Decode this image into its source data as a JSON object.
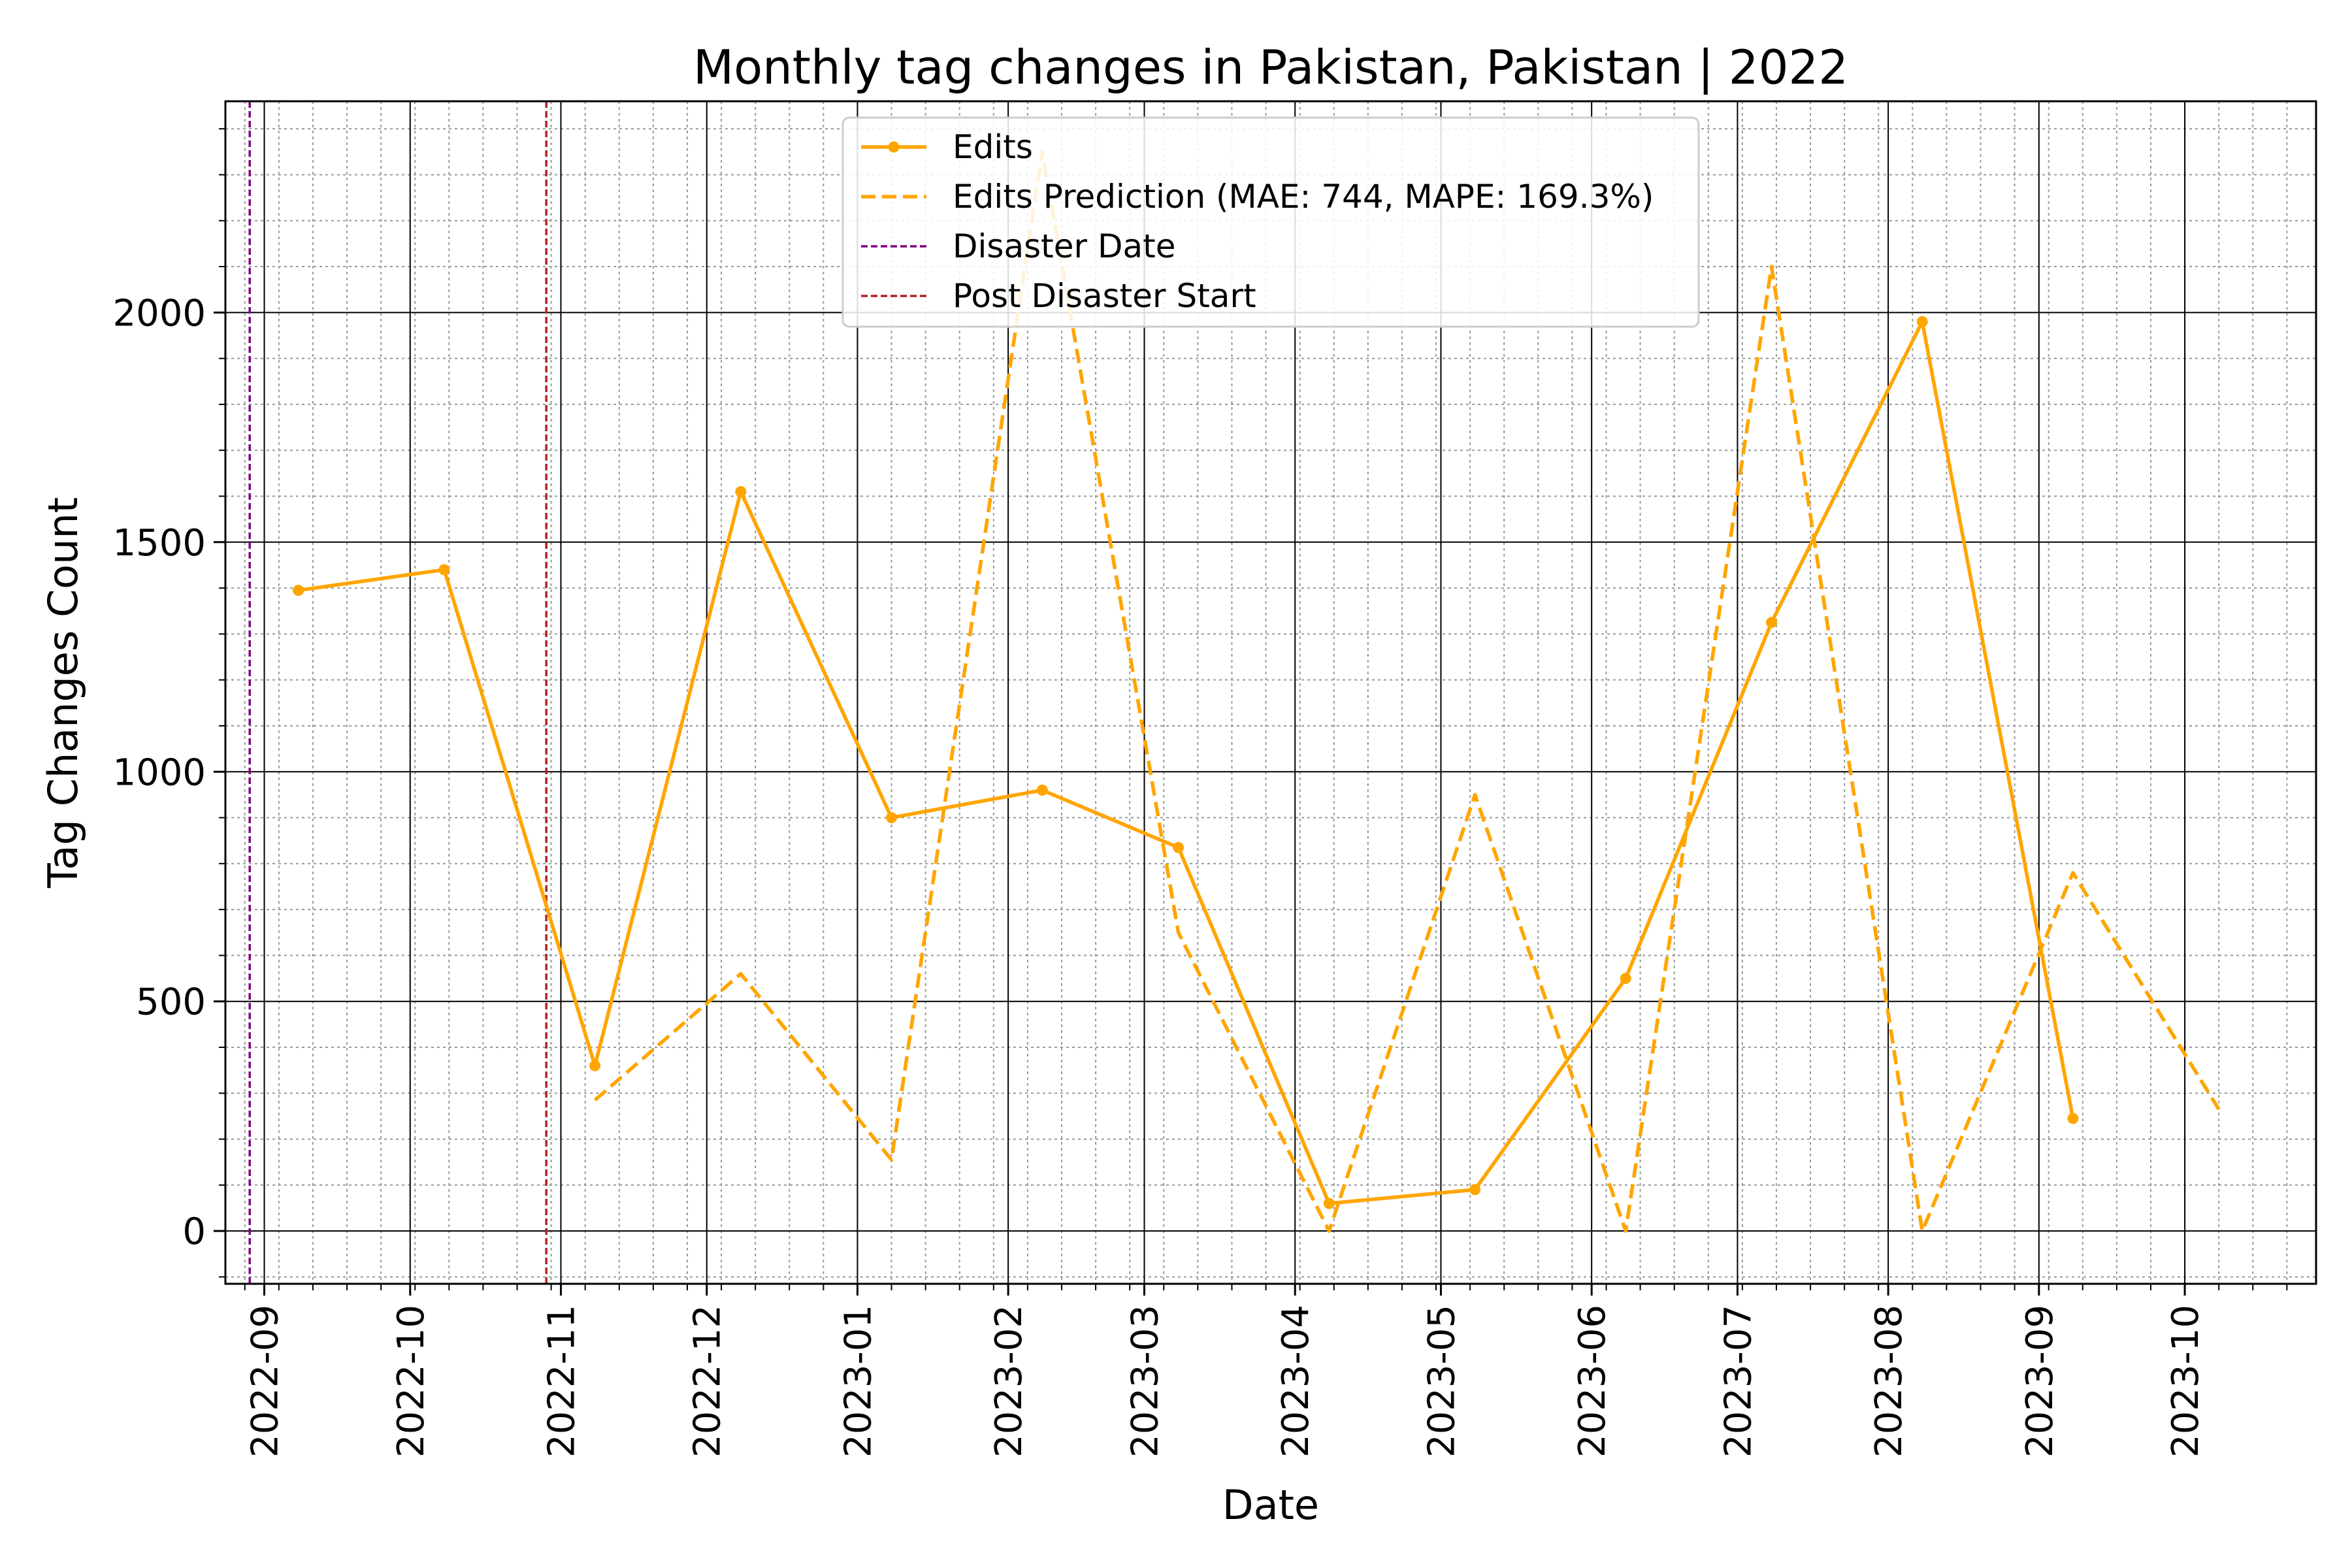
{
  "chart_data": {
    "type": "line",
    "title": "Monthly tag changes in Pakistan, Pakistan | 2022",
    "xlabel": "Date",
    "ylabel": "Tag Changes Count",
    "x_range": [
      "2022-08-24",
      "2023-10-28"
    ],
    "ylim": [
      -115,
      2460
    ],
    "x_ticks": [
      "2022-09",
      "2022-10",
      "2022-11",
      "2022-12",
      "2023-01",
      "2023-02",
      "2023-03",
      "2023-04",
      "2023-05",
      "2023-06",
      "2023-07",
      "2023-08",
      "2023-09",
      "2023-10"
    ],
    "y_ticks": [
      "0",
      "500",
      "1000",
      "1500",
      "2000"
    ],
    "grid": true,
    "legend_position": "top-center",
    "series": [
      {
        "name": "Edits",
        "style": "solid-marker",
        "color": "#FFA500",
        "x": [
          "2022-09-08",
          "2022-10-08",
          "2022-11-08",
          "2022-12-08",
          "2023-01-08",
          "2023-02-08",
          "2023-03-08",
          "2023-04-08",
          "2023-05-08",
          "2023-06-08",
          "2023-07-08",
          "2023-08-08",
          "2023-09-08"
        ],
        "values": [
          1395,
          1440,
          360,
          1610,
          900,
          960,
          835,
          60,
          90,
          550,
          1325,
          1980,
          245
        ]
      },
      {
        "name": "Edits Prediction (MAE: 744, MAPE: 169.3%)",
        "style": "dashed",
        "color": "#FFA500",
        "x": [
          "2022-11-08",
          "2022-12-08",
          "2023-01-08",
          "2023-02-08",
          "2023-03-08",
          "2023-04-08",
          "2023-05-08",
          "2023-06-08",
          "2023-07-08",
          "2023-08-08",
          "2023-09-08",
          "2023-10-08"
        ],
        "values": [
          285,
          560,
          155,
          2350,
          650,
          0,
          950,
          0,
          2100,
          0,
          780,
          265
        ]
      }
    ],
    "vlines": [
      {
        "name": "Disaster Date",
        "x": "2022-08-29",
        "color": "#800080"
      },
      {
        "name": "Post Disaster Start",
        "x": "2022-10-29",
        "color": "#B22222"
      }
    ]
  }
}
